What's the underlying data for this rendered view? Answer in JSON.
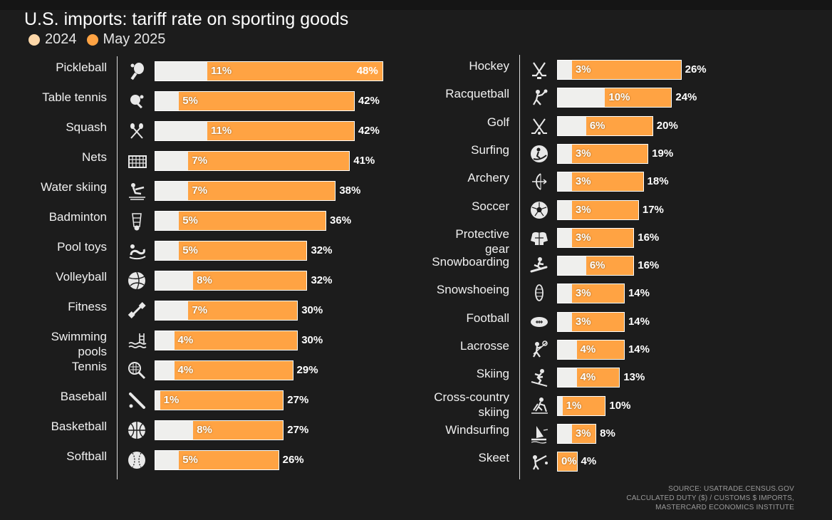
{
  "chart_data": {
    "type": "bar",
    "orientation": "horizontal",
    "title": "U.S. imports: tariff rate on sporting goods",
    "legend": [
      {
        "name": "2024",
        "color": "#fdd7a8"
      },
      {
        "name": "May 2025",
        "color": "#ffa343"
      }
    ],
    "unit": "%",
    "xlim": [
      0,
      48
    ],
    "panels": [
      {
        "categories": [
          "Pickleball",
          "Table tennis",
          "Squash",
          "Nets",
          "Water skiing",
          "Badminton",
          "Pool toys",
          "Volleyball",
          "Fitness",
          "Swimming pools",
          "Tennis",
          "Baseball",
          "Basketball",
          "Softball"
        ],
        "icons": [
          "pickleball-icon",
          "table-tennis-icon",
          "squash-icon",
          "nets-icon",
          "water-skiing-icon",
          "badminton-icon",
          "pool-toys-icon",
          "volleyball-icon",
          "fitness-icon",
          "swimming-pools-icon",
          "tennis-icon",
          "baseball-icon",
          "basketball-icon",
          "softball-icon"
        ],
        "series": [
          {
            "name": "2024",
            "values": [
              11,
              5,
              11,
              7,
              7,
              5,
              5,
              8,
              7,
              4,
              4,
              1,
              8,
              5
            ]
          },
          {
            "name": "May 2025",
            "values": [
              48,
              42,
              42,
              41,
              38,
              36,
              32,
              32,
              30,
              30,
              29,
              27,
              27,
              26
            ]
          }
        ]
      },
      {
        "categories": [
          "Hockey",
          "Racquetball",
          "Golf",
          "Surfing",
          "Archery",
          "Soccer",
          "Protective gear",
          "Snowboarding",
          "Snowshoeing",
          "Football",
          "Lacrosse",
          "Skiing",
          "Cross-country skiing",
          "Windsurfing",
          "Skeet"
        ],
        "icons": [
          "hockey-icon",
          "racquetball-icon",
          "golf-icon",
          "surfing-icon",
          "archery-icon",
          "soccer-icon",
          "protective-gear-icon",
          "snowboarding-icon",
          "snowshoeing-icon",
          "football-icon",
          "lacrosse-icon",
          "skiing-icon",
          "cross-country-skiing-icon",
          "windsurfing-icon",
          "skeet-icon"
        ],
        "series": [
          {
            "name": "2024",
            "values": [
              3,
              10,
              6,
              3,
              3,
              3,
              3,
              6,
              3,
              3,
              4,
              4,
              1,
              3,
              0
            ]
          },
          {
            "name": "May 2025",
            "values": [
              26,
              24,
              20,
              19,
              18,
              17,
              16,
              16,
              14,
              14,
              14,
              13,
              10,
              8,
              4
            ]
          }
        ]
      }
    ]
  },
  "source_lines": [
    "SOURCE: USATRADE.CENSUS.GOV",
    "CALCULATED DUTY ($) / CUSTOMS $ IMPORTS,",
    "MASTERCARD ECONOMICS INSTITUTE"
  ],
  "colors": {
    "background": "#1c1c1c",
    "new_bar": "#ffa343",
    "old_bar": "#efefed",
    "legend_2024": "#fdd7a8"
  }
}
